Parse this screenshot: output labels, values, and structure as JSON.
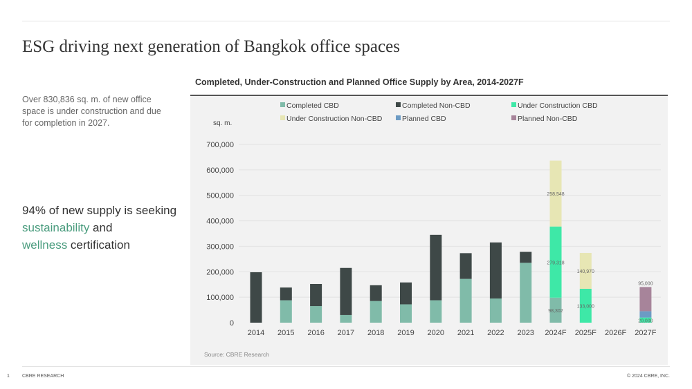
{
  "title": "ESG driving next generation of Bangkok office spaces",
  "intro": "Over 830,836 sq. m. of new office space is under construction and due for completion in 2027.",
  "headline": {
    "a": "94% of new supply is seeking ",
    "b": "sustainability",
    "c": " and ",
    "d": "wellness",
    "e": " certification"
  },
  "footer": {
    "page": "1",
    "left": "CBRE RESEARCH",
    "right": "© 2024 CBRE, INC."
  },
  "chart_data": {
    "type": "bar",
    "stacked": true,
    "title": "Completed, Under-Construction and Planned Office Supply by Area, 2014-2027F",
    "ylabel": "sq. m.",
    "ylim": [
      0,
      700000
    ],
    "yticks": [
      0,
      100000,
      200000,
      300000,
      400000,
      500000,
      600000,
      700000
    ],
    "ytick_labels": [
      "0",
      "100,000",
      "200,000",
      "300,000",
      "400,000",
      "500,000",
      "600,000",
      "700,000"
    ],
    "source": "Source: CBRE Research",
    "legend_position": "top",
    "categories": [
      "2014",
      "2015",
      "2016",
      "2017",
      "2018",
      "2019",
      "2020",
      "2021",
      "2022",
      "2023",
      "2024F",
      "2025F",
      "2026F",
      "2027F"
    ],
    "series": [
      {
        "name": "Completed CBD",
        "color": "#80bba9",
        "values": [
          0,
          88000,
          65000,
          30000,
          85000,
          72000,
          88000,
          172000,
          95000,
          235000,
          98302,
          0,
          0,
          0
        ]
      },
      {
        "name": "Completed Non-CBD",
        "color": "#3e4847",
        "values": [
          198000,
          50000,
          87000,
          185000,
          62000,
          86000,
          257000,
          101000,
          220000,
          43000,
          0,
          0,
          0,
          0
        ]
      },
      {
        "name": "Under Construction CBD",
        "color": "#3ee8a7",
        "values": [
          0,
          0,
          0,
          0,
          0,
          0,
          0,
          0,
          0,
          0,
          279318,
          133000,
          0,
          20000
        ]
      },
      {
        "name": "Under Construction Non-CBD",
        "color": "#e7e6b4",
        "values": [
          0,
          0,
          0,
          0,
          0,
          0,
          0,
          0,
          0,
          0,
          258548,
          140970,
          0,
          0
        ]
      },
      {
        "name": "Planned CBD",
        "color": "#6c9bc4",
        "values": [
          0,
          0,
          0,
          0,
          0,
          0,
          0,
          0,
          0,
          0,
          0,
          0,
          0,
          25000
        ]
      },
      {
        "name": "Planned Non-CBD",
        "color": "#a7849a",
        "values": [
          0,
          0,
          0,
          0,
          0,
          0,
          0,
          0,
          0,
          0,
          0,
          0,
          0,
          95000
        ]
      }
    ],
    "data_labels": [
      {
        "category": "2024F",
        "series": "Completed CBD",
        "text": "98,302"
      },
      {
        "category": "2024F",
        "series": "Under Construction CBD",
        "text": "279,318"
      },
      {
        "category": "2024F",
        "series": "Under Construction Non-CBD",
        "text": "258,548"
      },
      {
        "category": "2025F",
        "series": "Under Construction CBD",
        "text": "133,000"
      },
      {
        "category": "2025F",
        "series": "Under Construction Non-CBD",
        "text": "140,970"
      },
      {
        "category": "2027F",
        "series": "Under Construction CBD",
        "text": "20,000"
      },
      {
        "category": "2027F",
        "series": "Planned Non-CBD",
        "text": "95,000"
      }
    ]
  }
}
